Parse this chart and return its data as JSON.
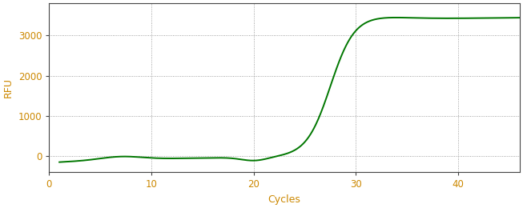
{
  "title": "",
  "xlabel": "Cycles",
  "ylabel": "RFU",
  "xlim": [
    0,
    46
  ],
  "ylim": [
    -400,
    3800
  ],
  "yticks": [
    0,
    1000,
    2000,
    3000
  ],
  "xticks": [
    0,
    10,
    20,
    30,
    40
  ],
  "line_color": "#007700",
  "line_width": 1.4,
  "grid_color": "#888888",
  "bg_color": "#ffffff",
  "tick_label_color": "#cc8800",
  "xlabel_fontsize": 9,
  "ylabel_fontsize": 9,
  "figsize": [
    6.53,
    2.6
  ],
  "dpi": 100
}
